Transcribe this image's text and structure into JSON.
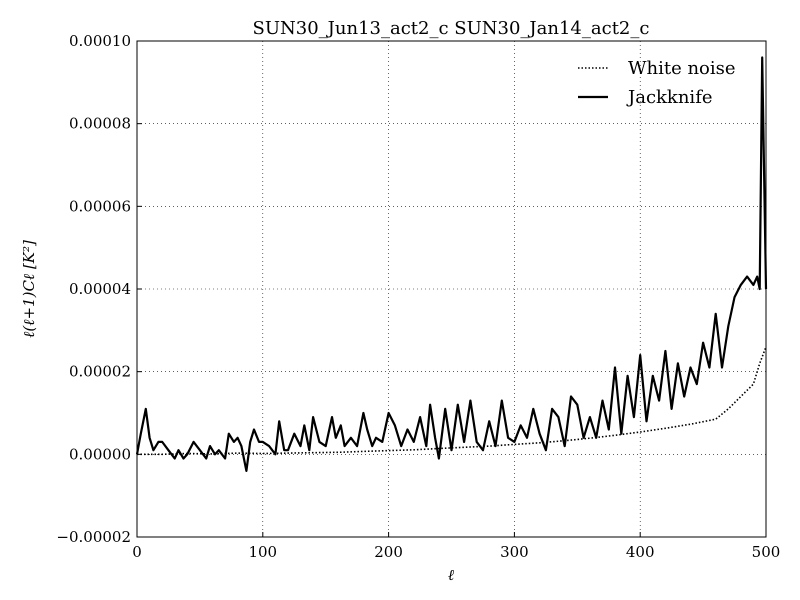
{
  "chart_data": {
    "type": "line",
    "title": "SUN30_Jun13_act2_c SUN30_Jan14_act2_c",
    "xlabel": "ℓ",
    "ylabel": "ℓ(ℓ+1)Cℓ [K²]",
    "xlim": [
      0,
      500
    ],
    "ylim": [
      -2e-05,
      0.0001
    ],
    "x_ticks": [
      "0",
      "100",
      "200",
      "300",
      "400",
      "500"
    ],
    "y_ticks": [
      "−0.00002",
      "0.00000",
      "0.00002",
      "0.00004",
      "0.00006",
      "0.00008",
      "0.00010"
    ],
    "grid": true,
    "legend_position": "top-right",
    "series": [
      {
        "name": "White noise",
        "style": "dotted",
        "color": "#000000",
        "x": [
          0,
          20,
          40,
          60,
          80,
          100,
          120,
          140,
          160,
          180,
          200,
          220,
          240,
          260,
          280,
          300,
          320,
          340,
          360,
          380,
          400,
          420,
          440,
          460,
          470,
          480,
          490,
          495,
          500
        ],
        "y": [
          0.0,
          0.0,
          2e-07,
          1e-07,
          3e-07,
          2e-07,
          3e-07,
          4e-07,
          5e-07,
          7e-07,
          9e-07,
          1.1e-06,
          1.4e-06,
          1.7e-06,
          2e-06,
          2.4e-06,
          2.8e-06,
          3.3e-06,
          3.9e-06,
          4.6e-06,
          5.4e-06,
          6.3e-06,
          7.3e-06,
          8.5e-06,
          1.1e-05,
          1.4e-05,
          1.7e-05,
          2.2e-05,
          2.6e-05
        ]
      },
      {
        "name": "Jackknife",
        "style": "solid",
        "color": "#000000",
        "x": [
          0,
          3,
          7,
          10,
          13,
          17,
          20,
          25,
          30,
          33,
          37,
          40,
          45,
          50,
          55,
          58,
          62,
          65,
          70,
          73,
          77,
          80,
          83,
          87,
          90,
          93,
          97,
          100,
          105,
          110,
          113,
          117,
          120,
          125,
          130,
          133,
          137,
          140,
          145,
          150,
          155,
          158,
          162,
          165,
          170,
          175,
          180,
          183,
          187,
          190,
          195,
          200,
          205,
          210,
          215,
          220,
          225,
          230,
          233,
          237,
          240,
          245,
          250,
          255,
          260,
          265,
          270,
          275,
          280,
          285,
          290,
          295,
          300,
          305,
          310,
          315,
          320,
          325,
          330,
          335,
          340,
          345,
          350,
          355,
          360,
          365,
          370,
          375,
          380,
          385,
          390,
          395,
          400,
          405,
          410,
          415,
          420,
          425,
          430,
          435,
          440,
          445,
          450,
          455,
          460,
          465,
          470,
          475,
          480,
          485,
          490,
          493,
          495,
          497,
          500
        ],
        "y": [
          0.0,
          5e-06,
          1.1e-05,
          4e-06,
          1e-06,
          3e-06,
          3e-06,
          1e-06,
          -1e-06,
          1e-06,
          -1e-06,
          0.0,
          3e-06,
          1e-06,
          -1e-06,
          2e-06,
          0.0,
          1e-06,
          -1e-06,
          5e-06,
          3e-06,
          4e-06,
          2e-06,
          -4e-06,
          3e-06,
          6e-06,
          3e-06,
          3e-06,
          2e-06,
          0.0,
          8e-06,
          1e-06,
          1e-06,
          5e-06,
          2e-06,
          7e-06,
          1e-06,
          9e-06,
          3e-06,
          2e-06,
          9e-06,
          4e-06,
          7e-06,
          2e-06,
          4e-06,
          2e-06,
          1e-05,
          6e-06,
          2e-06,
          4e-06,
          3e-06,
          1e-05,
          7e-06,
          2e-06,
          6e-06,
          3e-06,
          9e-06,
          2e-06,
          1.2e-05,
          4e-06,
          -1e-06,
          1.1e-05,
          1e-06,
          1.2e-05,
          3e-06,
          1.3e-05,
          3e-06,
          1e-06,
          8e-06,
          2e-06,
          1.3e-05,
          4e-06,
          3e-06,
          7e-06,
          4e-06,
          1.1e-05,
          5e-06,
          1e-06,
          1.1e-05,
          9e-06,
          2e-06,
          1.4e-05,
          1.2e-05,
          4e-06,
          9e-06,
          4e-06,
          1.3e-05,
          6e-06,
          2.1e-05,
          5e-06,
          1.9e-05,
          9e-06,
          2.4e-05,
          8e-06,
          1.9e-05,
          1.3e-05,
          2.5e-05,
          1.1e-05,
          2.2e-05,
          1.4e-05,
          2.1e-05,
          1.7e-05,
          2.7e-05,
          2.1e-05,
          3.4e-05,
          2.1e-05,
          3.1e-05,
          3.8e-05,
          4.1e-05,
          4.3e-05,
          4.1e-05,
          4.3e-05,
          4e-05,
          9.6e-05,
          4e-05
        ]
      }
    ]
  }
}
